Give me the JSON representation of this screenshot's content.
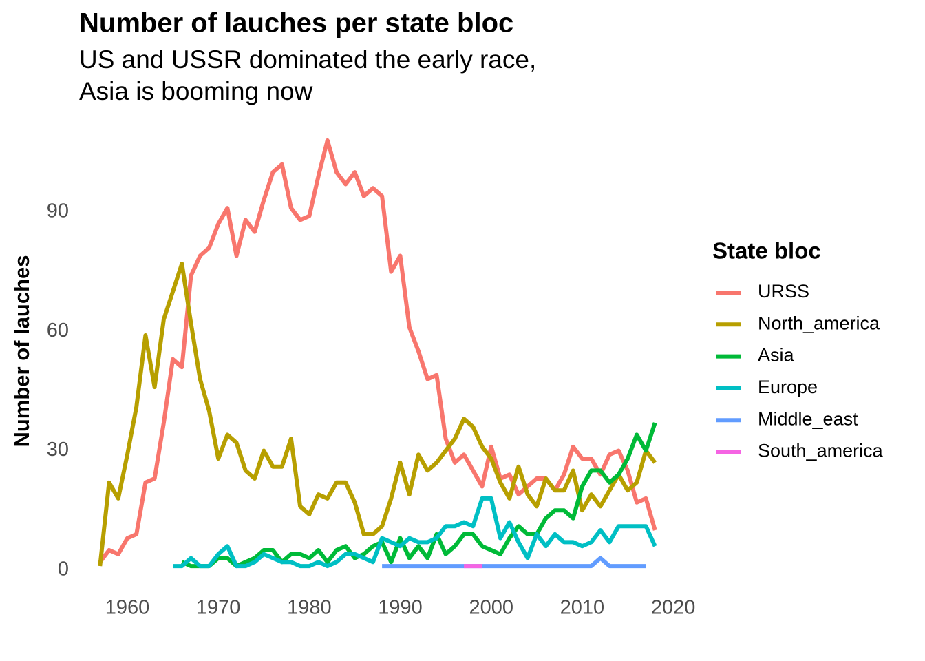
{
  "chart_data": {
    "type": "line",
    "title": "Number of lauches per state bloc",
    "subtitle": [
      "US and USSR dominated the early race,",
      "Asia is booming now"
    ],
    "y_label": "Number of lauches",
    "legend_title": "State bloc",
    "legend_position": "right",
    "grid": false,
    "x": [
      1957,
      1958,
      1959,
      1960,
      1961,
      1962,
      1963,
      1964,
      1965,
      1966,
      1967,
      1968,
      1969,
      1970,
      1971,
      1972,
      1973,
      1974,
      1975,
      1976,
      1977,
      1978,
      1979,
      1980,
      1981,
      1982,
      1983,
      1984,
      1985,
      1986,
      1987,
      1988,
      1989,
      1990,
      1991,
      1992,
      1993,
      1994,
      1995,
      1996,
      1997,
      1998,
      1999,
      2000,
      2001,
      2002,
      2003,
      2004,
      2005,
      2006,
      2007,
      2008,
      2009,
      2010,
      2011,
      2012,
      2013,
      2014,
      2015,
      2016,
      2017,
      2018
    ],
    "xlim": [
      1953.95,
      2021.05
    ],
    "xticks": [
      1960,
      1970,
      1980,
      1990,
      2000,
      2010,
      2020
    ],
    "ylim": [
      -4.35,
      113.35
    ],
    "yticks": [
      0,
      30,
      60,
      90
    ],
    "series": [
      {
        "name": "URSS",
        "color": "#F8766D",
        "values": [
          2,
          5,
          4,
          8,
          9,
          22,
          23,
          37,
          53,
          51,
          74,
          79,
          81,
          87,
          91,
          79,
          88,
          85,
          93,
          100,
          102,
          91,
          88,
          89,
          99,
          108,
          100,
          97,
          100,
          94,
          96,
          94,
          75,
          79,
          61,
          55,
          48,
          49,
          33,
          27,
          29,
          25,
          21,
          31,
          23,
          24,
          19,
          21,
          23,
          23,
          20,
          24,
          31,
          28,
          28,
          24,
          29,
          30,
          25,
          17,
          18,
          10
        ]
      },
      {
        "name": "North_america",
        "color": "#B79F00",
        "values": [
          1,
          22,
          18,
          29,
          41,
          59,
          46,
          63,
          70,
          77,
          62,
          48,
          40,
          28,
          34,
          32,
          25,
          23,
          30,
          26,
          26,
          33,
          16,
          14,
          19,
          18,
          22,
          22,
          17,
          9,
          9,
          11,
          18,
          27,
          19,
          29,
          25,
          27,
          30,
          33,
          38,
          36,
          31,
          28,
          22,
          18,
          26,
          19,
          16,
          23,
          20,
          20,
          25,
          15,
          19,
          16,
          20,
          24,
          20,
          22,
          30,
          27
        ]
      },
      {
        "name": "Asia",
        "color": "#00BA38",
        "values": [
          null,
          null,
          null,
          null,
          null,
          null,
          null,
          null,
          null,
          2,
          1,
          1,
          1,
          3,
          3,
          1,
          2,
          3,
          5,
          5,
          2,
          4,
          4,
          3,
          5,
          2,
          5,
          6,
          3,
          4,
          6,
          7,
          2,
          8,
          3,
          6,
          3,
          9,
          4,
          6,
          9,
          9,
          6,
          5,
          4,
          8,
          11,
          9,
          9,
          13,
          15,
          15,
          13,
          21,
          25,
          25,
          22,
          24,
          28,
          34,
          30,
          37
        ]
      },
      {
        "name": "Europe",
        "color": "#00BFC4",
        "values": [
          null,
          null,
          null,
          null,
          null,
          null,
          null,
          null,
          1,
          1,
          3,
          1,
          1,
          4,
          6,
          1,
          1,
          2,
          4,
          3,
          2,
          2,
          1,
          1,
          2,
          1,
          2,
          4,
          4,
          3,
          2,
          8,
          7,
          6,
          8,
          7,
          7,
          8,
          11,
          11,
          12,
          11,
          18,
          18,
          8,
          12,
          7,
          3,
          9,
          6,
          9,
          7,
          7,
          6,
          7,
          10,
          7,
          11,
          11,
          11,
          11,
          6
        ]
      },
      {
        "name": "Middle_east",
        "color": "#619CFF",
        "values": [
          null,
          null,
          null,
          null,
          null,
          null,
          null,
          null,
          null,
          null,
          null,
          null,
          null,
          null,
          null,
          null,
          null,
          null,
          null,
          null,
          null,
          null,
          null,
          null,
          null,
          null,
          null,
          null,
          null,
          null,
          null,
          1,
          1,
          1,
          1,
          1,
          1,
          1,
          1,
          1,
          1,
          1,
          1,
          1,
          1,
          1,
          1,
          1,
          1,
          1,
          1,
          1,
          1,
          1,
          1,
          3,
          1,
          1,
          1,
          1,
          1,
          null
        ]
      },
      {
        "name": "South_america",
        "color": "#F564E3",
        "values": [
          null,
          null,
          null,
          null,
          null,
          null,
          null,
          null,
          null,
          null,
          null,
          null,
          null,
          null,
          null,
          null,
          null,
          null,
          null,
          null,
          null,
          null,
          null,
          null,
          null,
          null,
          null,
          null,
          null,
          null,
          null,
          null,
          null,
          null,
          null,
          null,
          null,
          null,
          null,
          null,
          1,
          1,
          1,
          null,
          null,
          null,
          null,
          null,
          null,
          null,
          null,
          null,
          null,
          null,
          null,
          null,
          null,
          null,
          null,
          null,
          null,
          null
        ]
      }
    ]
  }
}
